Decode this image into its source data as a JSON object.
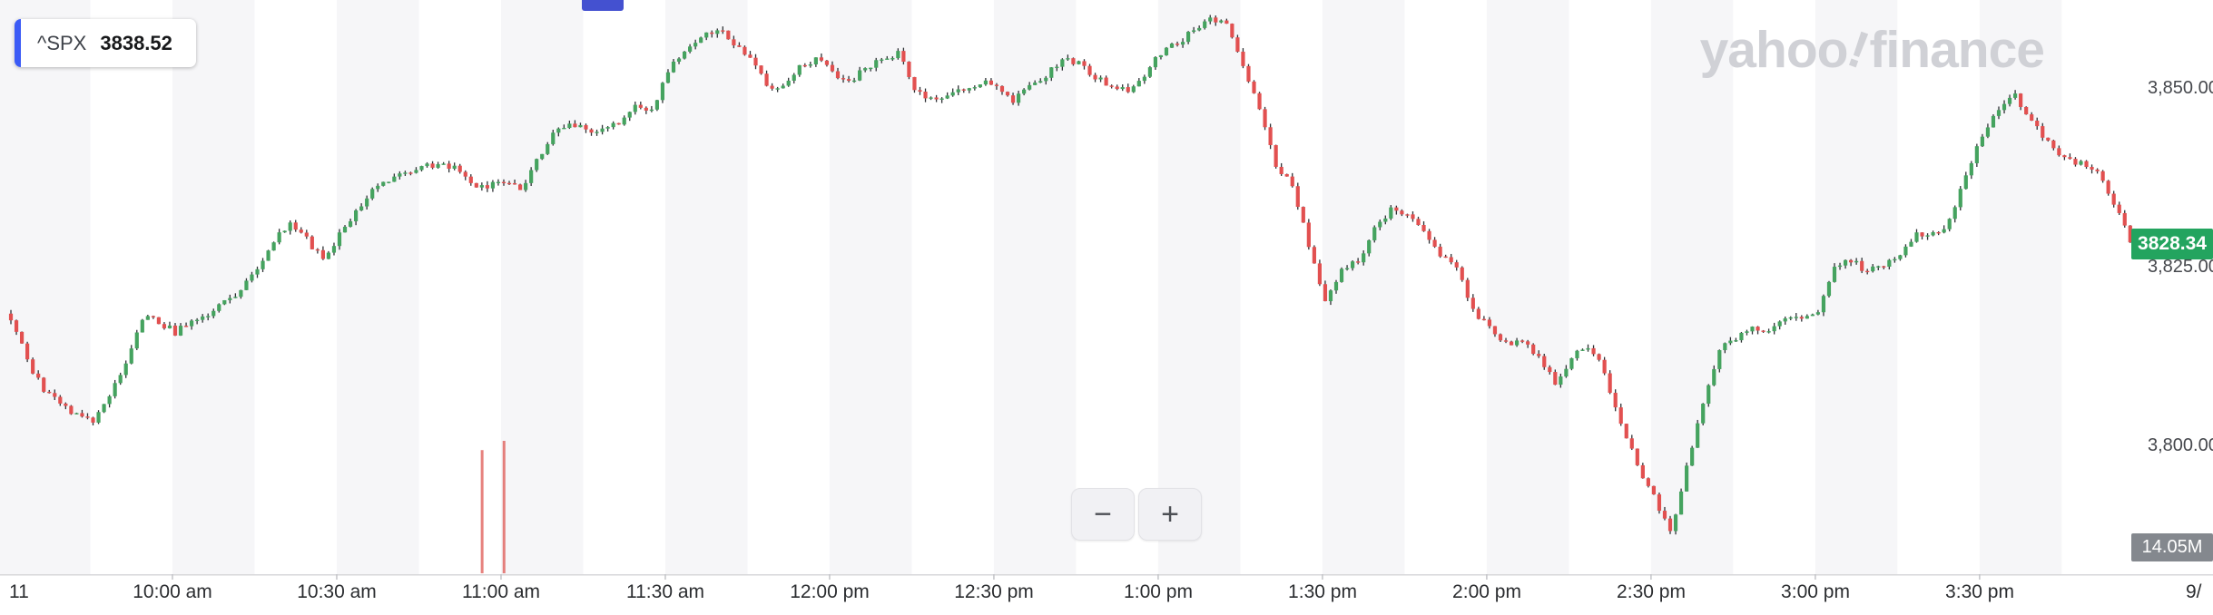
{
  "watermark": {
    "part1": "yahoo",
    "excl": "!",
    "part2": "finance"
  },
  "toolbar": {
    "zoom_out_label": "−",
    "zoom_in_label": "+"
  },
  "chart_data": {
    "type": "candlestick",
    "symbol": "^SPX",
    "legend_value": "3838.52",
    "last_price": 3828.34,
    "last_price_label": "3828.34",
    "last_volume_label": "14.05M",
    "y_axis": {
      "tick_labels": [
        "3,850.00",
        "3,825.00",
        "3,800.00"
      ],
      "tick_values": [
        3850,
        3825,
        3800
      ]
    },
    "x_axis": {
      "left_label": "11",
      "right_label": "9/",
      "time_labels": [
        "10:00 am",
        "10:30 am",
        "11:00 am",
        "11:30 am",
        "12:00 pm",
        "12:30 pm",
        "1:00 pm",
        "1:30 pm",
        "2:00 pm",
        "2:30 pm",
        "3:00 pm",
        "3:30 pm"
      ],
      "time_minutes": [
        30,
        60,
        90,
        120,
        150,
        180,
        210,
        240,
        270,
        300,
        330,
        360
      ]
    },
    "session_minutes": 390,
    "anchor_interval_min": 3,
    "ylim": [
      3786,
      3862
    ],
    "close_anchors": [
      3818,
      3812,
      3808,
      3806,
      3804.5,
      3803.5,
      3807,
      3812,
      3818,
      3817.5,
      3816,
      3817.5,
      3818.5,
      3820,
      3822,
      3824.5,
      3828.5,
      3831.5,
      3829,
      3826,
      3829.5,
      3833,
      3836,
      3837.5,
      3838,
      3839,
      3839.5,
      3839,
      3836.5,
      3836.5,
      3836.5,
      3836,
      3840,
      3843.5,
      3845,
      3844.5,
      3844,
      3845.5,
      3848,
      3847,
      3852.5,
      3855.5,
      3857,
      3858.5,
      3856.5,
      3854,
      3850.5,
      3850,
      3853,
      3854,
      3852.5,
      3851,
      3853,
      3854,
      3855,
      3850,
      3848.5,
      3849,
      3850,
      3851,
      3850.5,
      3848.5,
      3850.5,
      3852,
      3854,
      3853.5,
      3851.5,
      3850.5,
      3850,
      3852,
      3855,
      3856.5,
      3858,
      3859.5,
      3859,
      3853.5,
      3847,
      3839,
      3836.5,
      3828,
      3820,
      3824.5,
      3826,
      3830.5,
      3833,
      3832,
      3830.5,
      3827,
      3825.5,
      3819,
      3816.5,
      3814.5,
      3815,
      3812.5,
      3809,
      3812.5,
      3814,
      3810.5,
      3803,
      3797.5,
      3793,
      3788,
      3797,
      3806,
      3813.5,
      3815,
      3817,
      3816,
      3818,
      3817.5,
      3818.5,
      3825,
      3826,
      3824.5,
      3825.5,
      3827,
      3830,
      3829.5,
      3831.5,
      3838,
      3843.5,
      3847,
      3849,
      3845.5,
      3842.5,
      3840,
      3839.5,
      3838,
      3834,
      3829,
      3828.34
    ],
    "volume_spikes": [
      {
        "minute": 86,
        "frac": 0.93
      },
      {
        "minute": 90,
        "frac": 1.0
      }
    ],
    "colors": {
      "up": "#45a35f",
      "down": "#e25050",
      "wick": "#2e3135",
      "volume": "#e0615c",
      "price_badge": "#23a45f",
      "volume_badge": "#84888e",
      "stripe": "#f6f6f8",
      "accent_blue": "#3b5bf6",
      "indicator_blue": "#4451d0",
      "axis_line": "#d7d7da",
      "axis_tick": "#bfc0c4"
    }
  }
}
